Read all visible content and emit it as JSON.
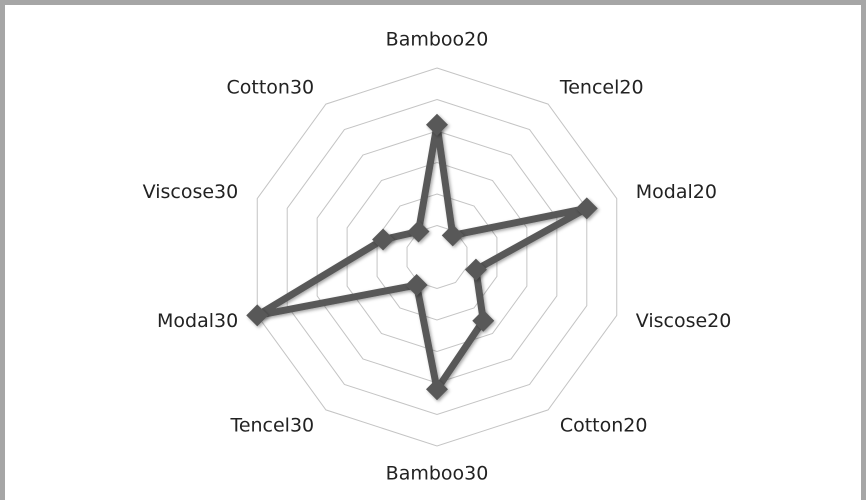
{
  "chart_data": {
    "type": "radar",
    "categories": [
      "Bamboo20",
      "Tencel20",
      "Modal20",
      "Viscose20",
      "Cotton20",
      "Bamboo30",
      "Tencel30",
      "Modal30",
      "Viscose30",
      "Cotton30"
    ],
    "values": [
      4.2,
      0.85,
      5.0,
      1.3,
      2.5,
      4.2,
      1.1,
      6.0,
      1.8,
      1.0
    ],
    "color": "#595959",
    "ylim": [
      0,
      6
    ],
    "yticks": [
      1,
      2,
      3,
      4,
      5,
      6
    ],
    "grid": true
  }
}
